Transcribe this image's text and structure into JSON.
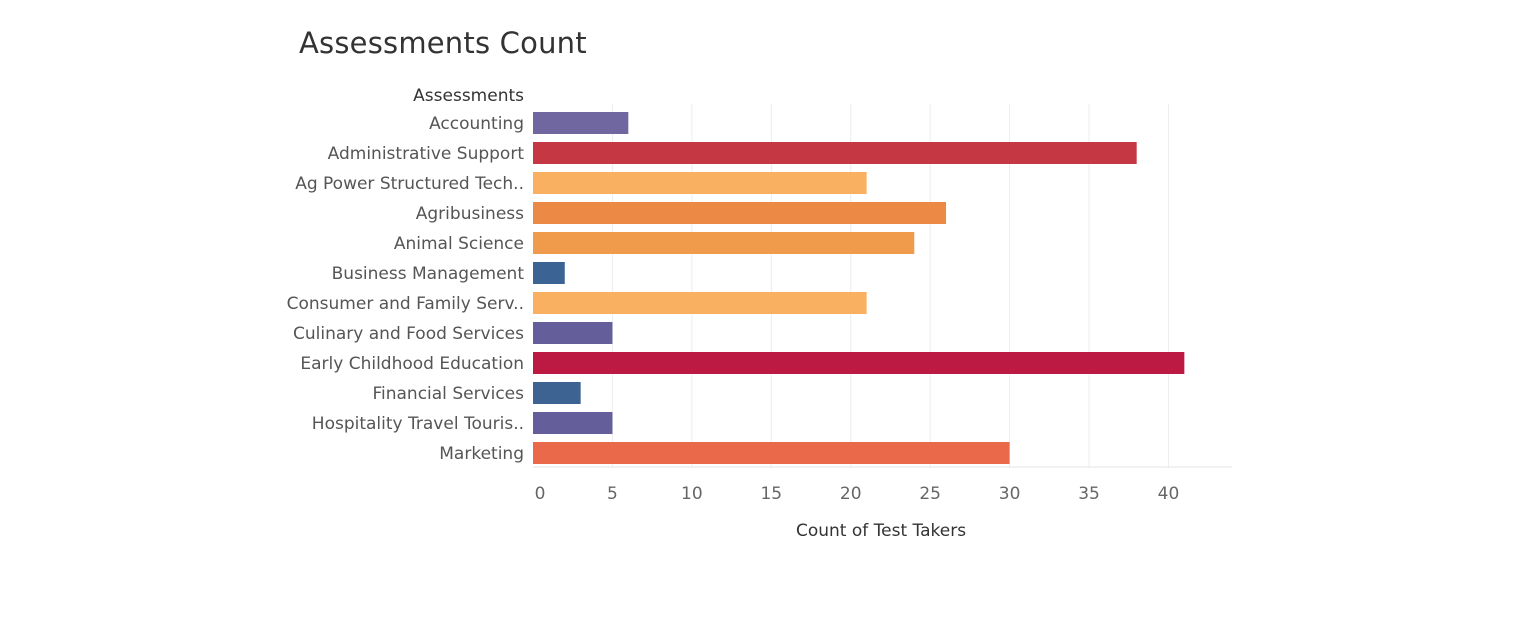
{
  "chart_data": {
    "type": "bar",
    "orientation": "horizontal",
    "title": "Assessments Count",
    "ylabel": "Assessments",
    "xlabel": "Count of Test Takers",
    "categories": [
      "Accounting",
      "Administrative Support",
      "Ag Power Structured Tech..",
      "Agribusiness",
      "Animal Science",
      "Business Management",
      "Consumer and Family Serv..",
      "Culinary and Food Services",
      "Early Childhood Education",
      "Financial Services",
      "Hospitality Travel Touris..",
      "Marketing"
    ],
    "values": [
      6,
      38,
      21,
      26,
      24,
      2,
      21,
      5,
      41,
      3,
      5,
      30
    ],
    "colors": [
      "#7167a0",
      "#c63744",
      "#f9b061",
      "#ec8945",
      "#f09a4b",
      "#3b6494",
      "#f9b061",
      "#645f9a",
      "#bd1a43",
      "#3d6393",
      "#645f9a",
      "#e9694a"
    ],
    "xlim": [
      0,
      44
    ],
    "xticks": [
      0,
      5,
      10,
      15,
      20,
      25,
      30,
      35,
      40
    ],
    "grid": true,
    "legend": "none"
  }
}
